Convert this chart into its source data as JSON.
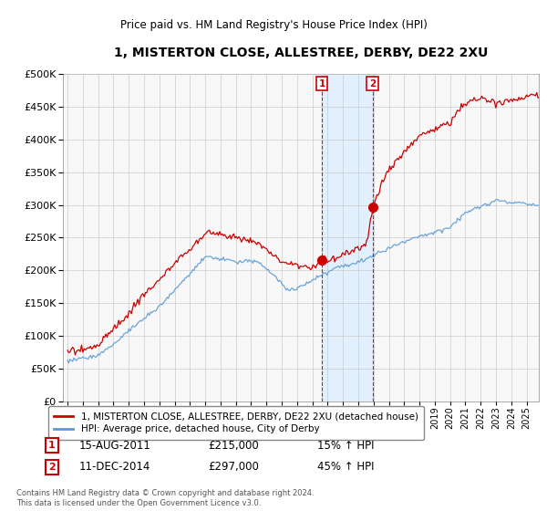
{
  "title": "1, MISTERTON CLOSE, ALLESTREE, DERBY, DE22 2XU",
  "subtitle": "Price paid vs. HM Land Registry's House Price Index (HPI)",
  "legend_line1": "1, MISTERTON CLOSE, ALLESTREE, DERBY, DE22 2XU (detached house)",
  "legend_line2": "HPI: Average price, detached house, City of Derby",
  "annotation1_date": "15-AUG-2011",
  "annotation1_price": "£215,000",
  "annotation1_hpi": "15% ↑ HPI",
  "annotation2_date": "11-DEC-2014",
  "annotation2_price": "£297,000",
  "annotation2_hpi": "45% ↑ HPI",
  "footnote": "Contains HM Land Registry data © Crown copyright and database right 2024.\nThis data is licensed under the Open Government Licence v3.0.",
  "ylim": [
    0,
    500000
  ],
  "yticks": [
    0,
    50000,
    100000,
    150000,
    200000,
    250000,
    300000,
    350000,
    400000,
    450000,
    500000
  ],
  "sale1_year": 2011.62,
  "sale1_price": 215000,
  "sale2_year": 2014.94,
  "sale2_price": 297000,
  "hpi_line_color": "#5b9bd5",
  "price_line_color": "#cc0000",
  "vline_color": "#cc0000",
  "shade_color": "#ddeeff",
  "grid_color": "#cccccc",
  "background_color": "#ffffff",
  "plot_bg_color": "#f8f8f8"
}
